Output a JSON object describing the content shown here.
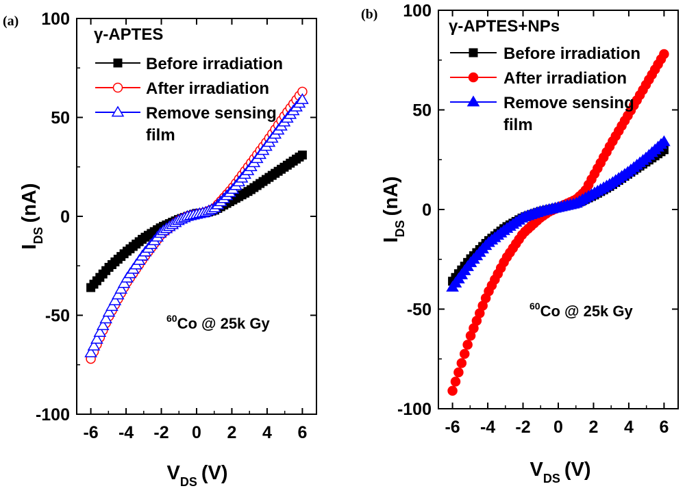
{
  "chart_data": [
    {
      "panel_label": "(a)",
      "type": "line",
      "title": "γ-APTES",
      "xlabel_main": "V",
      "xlabel_sub": "DS",
      "xlabel_unit": "(V)",
      "ylabel_main": "I",
      "ylabel_sub": "DS",
      "ylabel_unit": "(nA)",
      "xlim": [
        -6.8,
        6.8
      ],
      "ylim": [
        -100,
        100
      ],
      "xticks": [
        -6,
        -4,
        -2,
        0,
        2,
        4,
        6
      ],
      "xtick_labels": [
        "-6",
        "-4",
        "-2",
        "0",
        "2",
        "4",
        "6"
      ],
      "yticks": [
        100,
        50,
        0,
        -50,
        -100
      ],
      "ytick_labels": [
        "100",
        "50",
        "0",
        "-50",
        "-100"
      ],
      "annotation": {
        "sup": "60",
        "text": "Co @ 25k Gy"
      },
      "legend_lines": [
        [
          "Before irradiation"
        ],
        [
          "After irradiation"
        ],
        [
          "Remove sensing",
          "film"
        ]
      ],
      "series": [
        {
          "name": "Before irradiation",
          "marker": "square-filled",
          "color": "#000000",
          "x": [
            -6,
            -5,
            -4,
            -3,
            -2,
            -1,
            -0.5,
            0,
            0.5,
            1,
            2,
            3,
            4,
            5,
            6
          ],
          "y": [
            -36,
            -26,
            -18,
            -11,
            -5.5,
            -1.5,
            0,
            1.5,
            1.8,
            3,
            8,
            13,
            19,
            25,
            31
          ]
        },
        {
          "name": "After irradiation",
          "marker": "circle-open",
          "color": "#ff0000",
          "x": [
            -6,
            -5,
            -4,
            -3,
            -2,
            -1,
            -0.5,
            0,
            0.5,
            1,
            2,
            3,
            4,
            5,
            6
          ],
          "y": [
            -72,
            -51,
            -34,
            -21,
            -9,
            -2,
            0,
            1,
            2,
            4,
            14,
            26,
            38,
            51,
            63
          ]
        },
        {
          "name": "Remove sensing film",
          "marker": "triangle-open",
          "color": "#0000ff",
          "x": [
            -6,
            -5,
            -4,
            -3,
            -2,
            -1,
            -0.5,
            0,
            0.5,
            1,
            2,
            3,
            4,
            5,
            6
          ],
          "y": [
            -69,
            -49,
            -32,
            -19,
            -8,
            -2,
            0,
            1,
            2,
            4,
            13,
            24,
            36,
            48,
            59
          ]
        }
      ]
    },
    {
      "panel_label": "(b)",
      "type": "line",
      "title": "γ-APTES+NPs",
      "xlabel_main": "V",
      "xlabel_sub": "DS",
      "xlabel_unit": "(V)",
      "ylabel_main": "I",
      "ylabel_sub": "DS",
      "ylabel_unit": "(nA)",
      "xlim": [
        -6.8,
        6.8
      ],
      "ylim": [
        -100,
        100
      ],
      "xticks": [
        -6,
        -4,
        -2,
        0,
        2,
        4,
        6
      ],
      "xtick_labels": [
        "-6",
        "-4",
        "-2",
        "0",
        "2",
        "4",
        "6"
      ],
      "yticks": [
        100,
        50,
        0,
        -50,
        -100
      ],
      "ytick_labels": [
        "100",
        "50",
        "0",
        "-50",
        "-100"
      ],
      "annotation": {
        "sup": "60",
        "text": "Co @ 25k Gy"
      },
      "legend_lines": [
        [
          "Before irradiation"
        ],
        [
          "After irradiation"
        ],
        [
          "Remove sensing",
          "film"
        ]
      ],
      "series": [
        {
          "name": "Before irradiation",
          "marker": "square-filled",
          "color": "#000000",
          "x": [
            -6,
            -5,
            -4,
            -3,
            -2,
            -1,
            -0.5,
            0,
            0.5,
            1,
            2,
            3,
            4,
            5,
            6
          ],
          "y": [
            -36,
            -25,
            -16,
            -9,
            -4,
            -1,
            0,
            1,
            2,
            3,
            7,
            12,
            18,
            24,
            30
          ]
        },
        {
          "name": "After irradiation",
          "marker": "circle-filled",
          "color": "#ff0000",
          "x": [
            -6,
            -5,
            -4,
            -3,
            -2,
            -1,
            -0.5,
            0,
            0.5,
            1,
            1.5,
            2,
            3,
            4,
            5,
            6
          ],
          "y": [
            -91,
            -64,
            -42,
            -25,
            -12,
            -4,
            -1,
            1,
            3,
            5,
            9,
            17,
            33,
            48,
            63,
            78
          ]
        },
        {
          "name": "Remove sensing film",
          "marker": "triangle-filled",
          "color": "#0000ff",
          "x": [
            -6,
            -5,
            -4,
            -3,
            -2,
            -1,
            -0.5,
            0,
            0.5,
            1,
            2,
            3,
            4,
            5,
            6
          ],
          "y": [
            -39,
            -27,
            -17,
            -10,
            -4,
            -1,
            0,
            1,
            2,
            3,
            8,
            13,
            19,
            26,
            34
          ]
        }
      ]
    }
  ]
}
